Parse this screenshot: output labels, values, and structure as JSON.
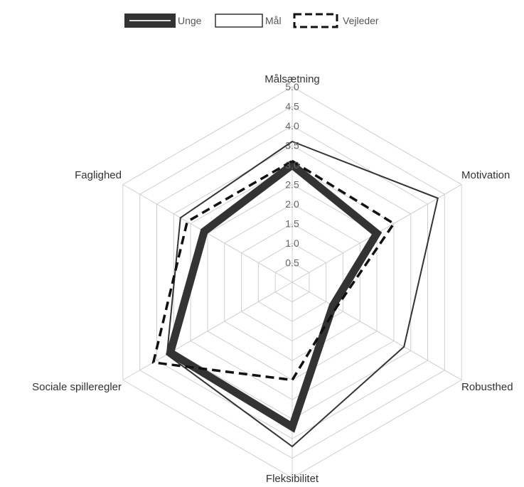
{
  "chart_data": {
    "type": "radar",
    "axes": [
      "Målsætning",
      "Motivation",
      "Robusthed",
      "Fleksibilitet",
      "Sociale spilleregler",
      "Faglighed"
    ],
    "rmin": 0,
    "rmax": 5,
    "ticks": [
      "0.5",
      "1.0",
      "1.5",
      "2.0",
      "2.5",
      "3.0",
      "3.5",
      "4.0",
      "4.5",
      "5.0"
    ],
    "tick_values": [
      0.5,
      1.0,
      1.5,
      2.0,
      2.5,
      3.0,
      3.5,
      4.0,
      4.5,
      5.0
    ],
    "grid": true,
    "legend_position": "top",
    "series": [
      {
        "name": "Unge",
        "values": [
          3.0,
          2.5,
          1.2,
          3.7,
          3.6,
          2.6
        ],
        "color": "#333333",
        "style": "thick"
      },
      {
        "name": "Mål",
        "values": [
          3.6,
          4.3,
          3.3,
          4.2,
          3.7,
          3.3
        ],
        "color": "#333333",
        "style": "thin"
      },
      {
        "name": "Vejleder",
        "values": [
          3.1,
          3.0,
          1.3,
          2.5,
          4.1,
          3.1
        ],
        "color": "#111111",
        "style": "dashed"
      }
    ]
  }
}
